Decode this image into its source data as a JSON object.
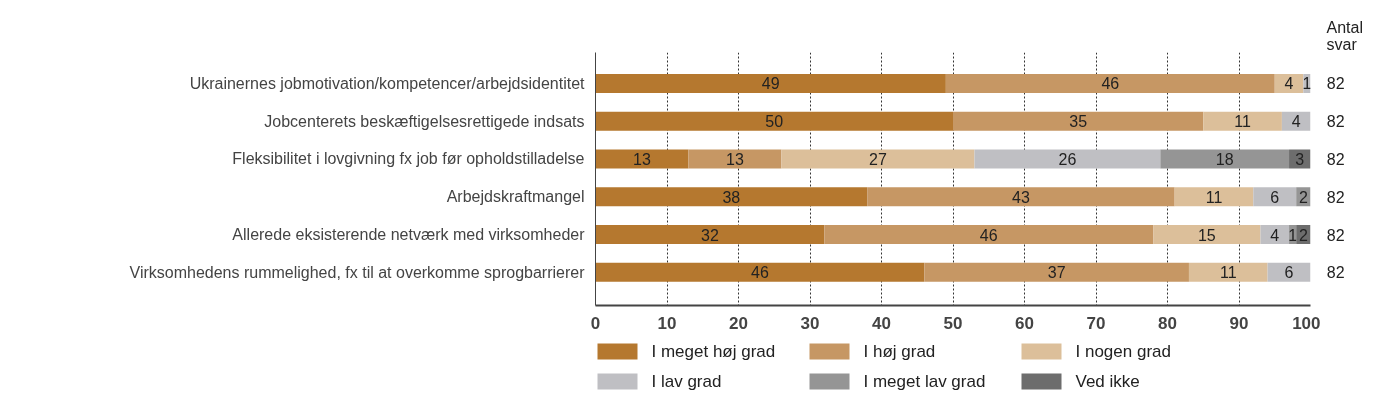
{
  "chart_data": {
    "type": "bar",
    "orientation": "horizontal",
    "stacked": true,
    "data_labels": true,
    "grid": "x",
    "legend": "bottom",
    "categories": [
      "Ukrainernes jobmotivation/kompetencer/arbejdsidentitet",
      "Jobcenterets beskæftigelsesrettigede indsats",
      "Fleksibilitet i lovgivning fx job før opholdstilladelse",
      "Arbejdskraftmangel",
      "Allerede eksisterende netværk med virksomheder",
      "Virksomhedens rummelighed, fx til at overkomme sprogbarrierer"
    ],
    "series": [
      {
        "name": "I meget høj grad",
        "color": "#b5782f",
        "values": [
          49,
          50,
          13,
          38,
          32,
          46
        ]
      },
      {
        "name": "I høj grad",
        "color": "#c69764",
        "values": [
          46,
          35,
          13,
          43,
          46,
          37
        ]
      },
      {
        "name": "I nogen grad",
        "color": "#dcbf9a",
        "values": [
          4,
          11,
          27,
          11,
          15,
          11
        ]
      },
      {
        "name": "I lav grad",
        "color": "#bfbfc3",
        "values": [
          1,
          4,
          26,
          6,
          4,
          6
        ]
      },
      {
        "name": "I meget lav grad",
        "color": "#959595",
        "values": [
          null,
          null,
          18,
          2,
          1,
          null
        ]
      },
      {
        "name": "Ved ikke",
        "color": "#6d6d6d",
        "values": [
          null,
          null,
          3,
          null,
          2,
          null
        ]
      }
    ],
    "xlim": [
      0,
      100
    ],
    "xticks": [
      0,
      10,
      20,
      30,
      40,
      50,
      60,
      70,
      80,
      90,
      100
    ],
    "annotations": [
      "Antal svar",
      "82",
      "82",
      "82",
      "82",
      "82",
      "82"
    ]
  }
}
